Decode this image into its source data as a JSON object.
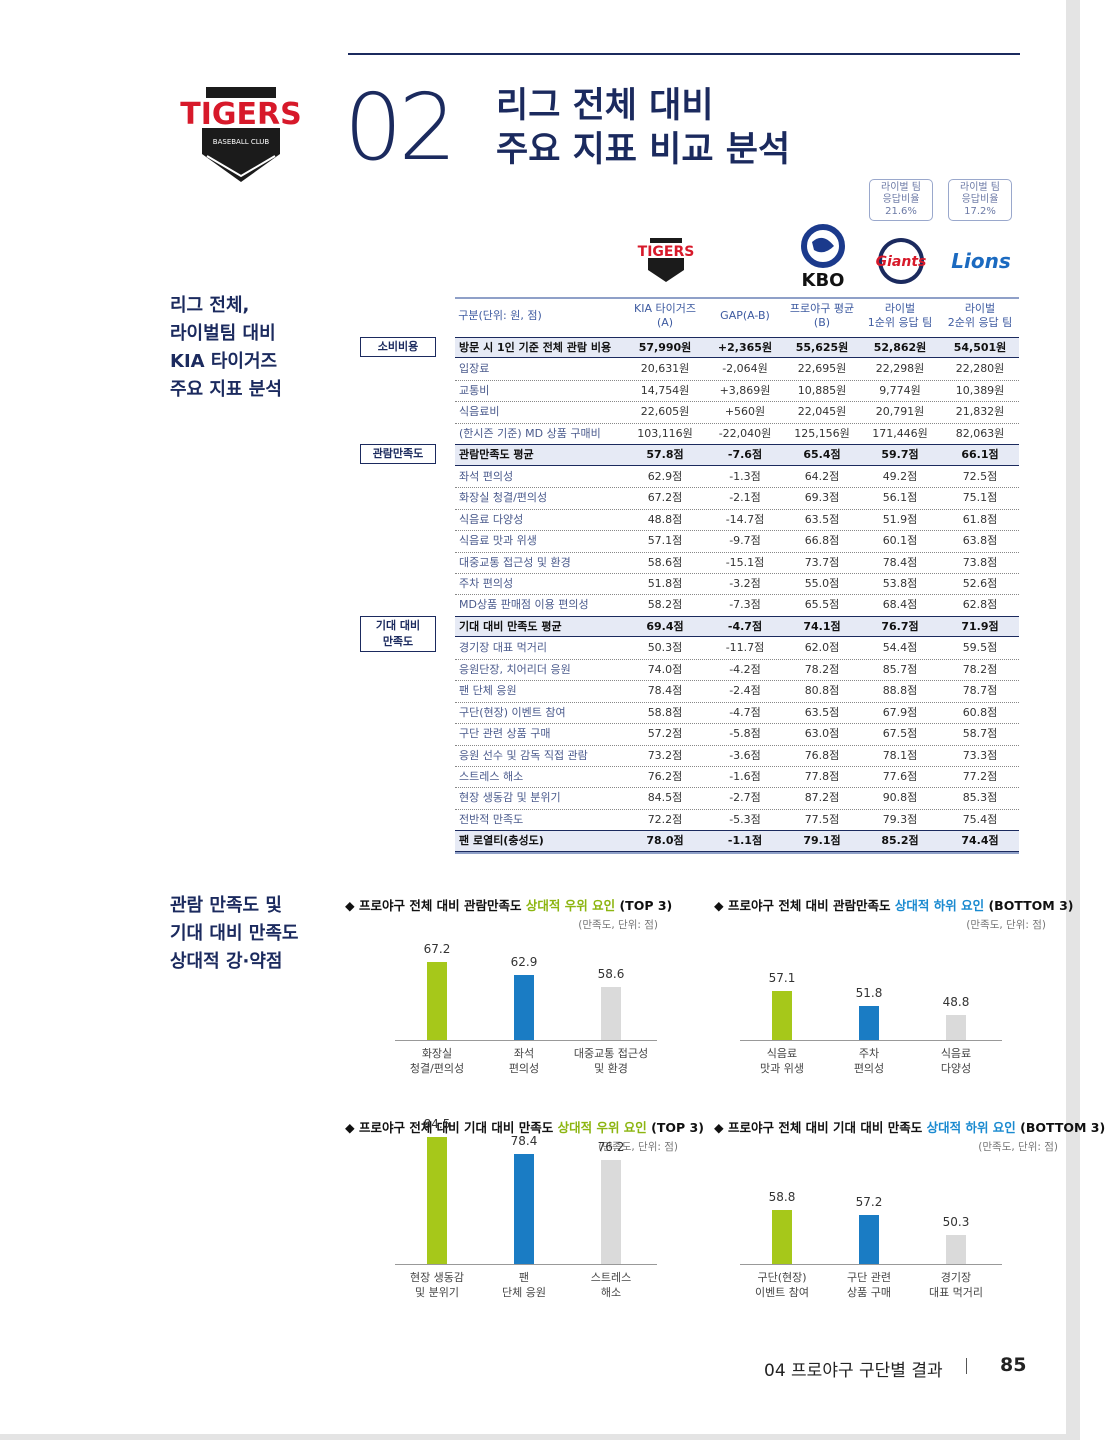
{
  "header": {
    "number": "02",
    "title": "리그 전체 대비\n주요 지표 비교 분석"
  },
  "logos": {
    "tigers": "TIGERS",
    "baseball_club": "BASEBALL CLUB",
    "kbo": "KBO",
    "giants": "Giants",
    "lions": "Lions"
  },
  "section_titles": [
    "리그 전체,\n라이벌팀 대비\nKIA 타이거즈\n주요 지표 분석",
    "관람 만족도 및\n기대 대비 만족도\n상대적 강·약점"
  ],
  "badges": [
    "라이벌 팀\n응답비율\n21.6%",
    "라이벌 팀\n응답비율\n17.2%"
  ],
  "table": {
    "header": [
      "구분(단위: 원, 점)",
      "KIA 타이거즈\n(A)",
      "GAP(A-B)",
      "프로야구 평균\n(B)",
      "라이벌\n1순위 응답 팀",
      "라이벌\n2순위 응답 팀"
    ],
    "groups": [
      {
        "label": "소비비용",
        "rows": [
          {
            "summary": true,
            "cells": [
              "방문 시 1인 기준 전체 관람 비용",
              "57,990원",
              "+2,365원",
              "55,625원",
              "52,862원",
              "54,501원"
            ]
          },
          {
            "cells": [
              "입장료",
              "20,631원",
              "-2,064원",
              "22,695원",
              "22,298원",
              "22,280원"
            ]
          },
          {
            "cells": [
              "교통비",
              "14,754원",
              "+3,869원",
              "10,885원",
              "9,774원",
              "10,389원"
            ]
          },
          {
            "cells": [
              "식음료비",
              "22,605원",
              "+560원",
              "22,045원",
              "20,791원",
              "21,832원"
            ]
          },
          {
            "cells": [
              "(한시즌 기준) MD 상품 구매비",
              "103,116원",
              "-22,040원",
              "125,156원",
              "171,446원",
              "82,063원"
            ]
          }
        ]
      },
      {
        "label": "관람만족도",
        "rows": [
          {
            "summary": true,
            "cells": [
              "관람만족도 평균",
              "57.8점",
              "-7.6점",
              "65.4점",
              "59.7점",
              "66.1점"
            ]
          },
          {
            "cells": [
              "좌석 편의성",
              "62.9점",
              "-1.3점",
              "64.2점",
              "49.2점",
              "72.5점"
            ]
          },
          {
            "cells": [
              "화장실 청결/편의성",
              "67.2점",
              "-2.1점",
              "69.3점",
              "56.1점",
              "75.1점"
            ]
          },
          {
            "cells": [
              "식음료 다양성",
              "48.8점",
              "-14.7점",
              "63.5점",
              "51.9점",
              "61.8점"
            ]
          },
          {
            "cells": [
              "식음료 맛과 위생",
              "57.1점",
              "-9.7점",
              "66.8점",
              "60.1점",
              "63.8점"
            ]
          },
          {
            "cells": [
              "대중교통 접근성 및 환경",
              "58.6점",
              "-15.1점",
              "73.7점",
              "78.4점",
              "73.8점"
            ]
          },
          {
            "cells": [
              "주차 편의성",
              "51.8점",
              "-3.2점",
              "55.0점",
              "53.8점",
              "52.6점"
            ]
          },
          {
            "cells": [
              "MD상품 판매점 이용 편의성",
              "58.2점",
              "-7.3점",
              "65.5점",
              "68.4점",
              "62.8점"
            ]
          }
        ]
      },
      {
        "label": "기대 대비\n만족도",
        "rows": [
          {
            "summary": true,
            "cells": [
              "기대 대비 만족도 평균",
              "69.4점",
              "-4.7점",
              "74.1점",
              "76.7점",
              "71.9점"
            ]
          },
          {
            "cells": [
              "경기장 대표 먹거리",
              "50.3점",
              "-11.7점",
              "62.0점",
              "54.4점",
              "59.5점"
            ]
          },
          {
            "cells": [
              "응원단장, 치어리더 응원",
              "74.0점",
              "-4.2점",
              "78.2점",
              "85.7점",
              "78.2점"
            ]
          },
          {
            "cells": [
              "팬 단체 응원",
              "78.4점",
              "-2.4점",
              "80.8점",
              "88.8점",
              "78.7점"
            ]
          },
          {
            "cells": [
              "구단(현장) 이벤트 참여",
              "58.8점",
              "-4.7점",
              "63.5점",
              "67.9점",
              "60.8점"
            ]
          },
          {
            "cells": [
              "구단 관련 상품 구매",
              "57.2점",
              "-5.8점",
              "63.0점",
              "67.5점",
              "58.7점"
            ]
          },
          {
            "cells": [
              "응원 선수 및 감독 직접 관람",
              "73.2점",
              "-3.6점",
              "76.8점",
              "78.1점",
              "73.3점"
            ]
          },
          {
            "cells": [
              "스트레스 해소",
              "76.2점",
              "-1.6점",
              "77.8점",
              "77.6점",
              "77.2점"
            ]
          },
          {
            "cells": [
              "현장 생동감 및 분위기",
              "84.5점",
              "-2.7점",
              "87.2점",
              "90.8점",
              "85.3점"
            ]
          },
          {
            "cells": [
              "전반적 만족도",
              "72.2점",
              "-5.3점",
              "77.5점",
              "79.3점",
              "75.4점"
            ]
          }
        ]
      },
      {
        "rows": [
          {
            "summary": true,
            "cells": [
              "팬 로열티(충성도)",
              "78.0점",
              "-1.1점",
              "79.1점",
              "85.2점",
              "74.4점"
            ]
          }
        ]
      }
    ]
  },
  "chart_data": [
    {
      "type": "bar",
      "title": "프로야구 전체 대비 관람만족도",
      "highlight": "상대적 우위 요인",
      "title_suffix": "(TOP 3)",
      "highlight_color": "#8cb510",
      "unit": "(만족도, 단위: 점)",
      "categories": [
        "화장실\n청결/편의성",
        "좌석\n편의성",
        "대중교통 접근성\n및 환경"
      ],
      "values": [
        67.2,
        62.9,
        58.6
      ],
      "colors": [
        "#a6c81a",
        "#1a7cc4",
        "#dadada"
      ],
      "ylim": [
        40,
        90
      ]
    },
    {
      "type": "bar",
      "title": "프로야구 전체 대비 관람만족도",
      "highlight": "상대적 하위 요인",
      "title_suffix": "(BOTTOM 3)",
      "highlight_color": "#1a8ad0",
      "unit": "(만족도, 단위: 점)",
      "categories": [
        "식음료\n맛과 위생",
        "주차\n편의성",
        "식음료\n다양성"
      ],
      "values": [
        57.1,
        51.8,
        48.8
      ],
      "colors": [
        "#a6c81a",
        "#1a7cc4",
        "#dadada"
      ],
      "ylim": [
        40,
        90
      ]
    },
    {
      "type": "bar",
      "title": "프로야구 전체 대비 기대 대비 만족도",
      "highlight": "상대적 우위 요인",
      "title_suffix": "(TOP 3)",
      "highlight_color": "#8cb510",
      "unit": "(만족도, 단위: 점)",
      "categories": [
        "현장 생동감\n및 분위기",
        "팬\n단체 응원",
        "스트레스\n해소"
      ],
      "values": [
        84.5,
        78.4,
        76.2
      ],
      "colors": [
        "#a6c81a",
        "#1a7cc4",
        "#dadada"
      ],
      "ylim": [
        40,
        90
      ]
    },
    {
      "type": "bar",
      "title": "프로야구 전체 대비 기대 대비 만족도",
      "highlight": "상대적 하위 요인",
      "title_suffix": "(BOTTOM 3)",
      "highlight_color": "#1a8ad0",
      "unit": "(만족도, 단위: 점)",
      "categories": [
        "구단(현장)\n이벤트 참여",
        "구단 관련\n상품 구매",
        "경기장\n대표 먹거리"
      ],
      "values": [
        58.8,
        57.2,
        50.3
      ],
      "colors": [
        "#a6c81a",
        "#1a7cc4",
        "#dadada"
      ],
      "ylim": [
        40,
        90
      ]
    }
  ],
  "footer": {
    "section": "04 프로야구 구단별 결과",
    "page": "85"
  }
}
